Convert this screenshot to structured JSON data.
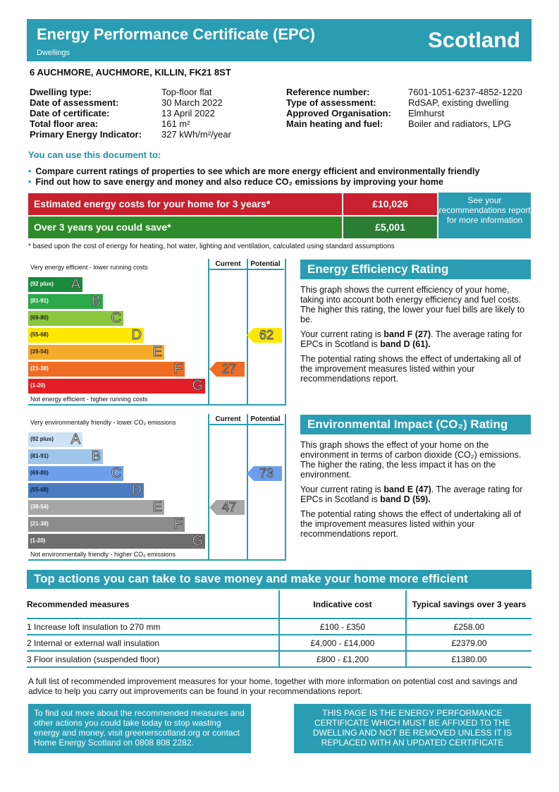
{
  "header": {
    "title": "Energy Performance Certificate (EPC)",
    "subtitle": "Dwellings",
    "country": "Scotland"
  },
  "address": "6 AUCHMORE, AUCHMORE, KILLIN, FK21 8ST",
  "details_left": [
    {
      "label": "Dwelling type:",
      "value": "Top-floor flat"
    },
    {
      "label": "Date of assessment:",
      "value": "30 March 2022"
    },
    {
      "label": "Date of certificate:",
      "value": "13 April 2022"
    },
    {
      "label": "Total floor area:",
      "value": "161 m²"
    },
    {
      "label": "Primary Energy Indicator:",
      "value": "327 kWh/m²/year"
    }
  ],
  "details_right": [
    {
      "label": "Reference number:",
      "value": "7601-1051-6237-4852-1220"
    },
    {
      "label": "Type of assessment:",
      "value": "RdSAP, existing dwelling"
    },
    {
      "label": "Approved Organisation:",
      "value": "Elmhurst"
    },
    {
      "label": "Main heating and fuel:",
      "value": "Boiler and radiators, LPG"
    }
  ],
  "use_heading": "You can use this document to:",
  "bullets": [
    "Compare current ratings of properties to see which are more energy efficient and environmentally friendly",
    "Find out how to save energy and money and also reduce CO₂ emissions by improving your home"
  ],
  "costs": {
    "estimated_label": "Estimated energy costs for your home for 3 years*",
    "estimated_value": "£10,026",
    "save_label": "Over 3 years you could save*",
    "save_value": "£5,001",
    "see_more": "See your recommendations report for more information",
    "footnote": "* based upon the cost of energy for heating, hot water, lighting and ventilation, calculated using standard assumptions"
  },
  "energy_chart": {
    "top": "Very energy efficient - lower running costs",
    "bottom": "Not energy efficient - higher running costs",
    "col_current": "Current",
    "col_potential": "Potential",
    "bands": [
      {
        "range": "(92 plus)",
        "letter": "A",
        "color": "#1a8a3c"
      },
      {
        "range": "(81-91)",
        "letter": "B",
        "color": "#2aa84a"
      },
      {
        "range": "(69-80)",
        "letter": "C",
        "color": "#8cc63e"
      },
      {
        "range": "(55-68)",
        "letter": "D",
        "color": "#ffe800"
      },
      {
        "range": "(39-54)",
        "letter": "E",
        "color": "#f5ab2a"
      },
      {
        "range": "(21-38)",
        "letter": "F",
        "color": "#ef6c23"
      },
      {
        "range": "(1-20)",
        "letter": "G",
        "color": "#e31d25"
      }
    ],
    "current": 27,
    "potential": 62
  },
  "env_chart": {
    "top": "Very environmentally friendly - lower CO₂ emissions",
    "bottom": "Not environmentally friendly - higher CO₂ emissions",
    "col_current": "Current",
    "col_potential": "Potential",
    "bands": [
      {
        "range": "(92 plus)",
        "letter": "A",
        "color": "#cfe2f3"
      },
      {
        "range": "(81-91)",
        "letter": "B",
        "color": "#9fc5ea"
      },
      {
        "range": "(69-80)",
        "letter": "C",
        "color": "#6d9eeb"
      },
      {
        "range": "(55-68)",
        "letter": "D",
        "color": "#4a7cc0"
      },
      {
        "range": "(39-54)",
        "letter": "E",
        "color": "#a6a6a6"
      },
      {
        "range": "(21-38)",
        "letter": "F",
        "color": "#8c8c8c"
      },
      {
        "range": "(1-20)",
        "letter": "G",
        "color": "#6e6e6e"
      }
    ],
    "current": 47,
    "potential": 73
  },
  "eer": {
    "title": "Energy Efficiency Rating",
    "p1": "This graph shows the current efficiency of your home, taking into account both energy efficiency and fuel costs. The higher this rating, the lower your fuel bills are likely to be.",
    "p2a": "Your current rating is ",
    "p2b": "band F (27)",
    "p2c": ". The average rating for EPCs in Scotland is ",
    "p2d": "band D (61).",
    "p3": "The potential rating shows the effect of undertaking all of the improvement measures listed within your recommendations report."
  },
  "eir": {
    "title": "Environmental Impact (CO₂) Rating",
    "p1": "This graph shows the effect of your home on the environment in terms of carbon dioxide (CO₂) emissions. The higher the rating, the less impact it has on the environment.",
    "p2a": "Your current rating is ",
    "p2b": "band E (47)",
    "p2c": ". The average rating for EPCs in Scotland is ",
    "p2d": "band D (59).",
    "p3": "The potential rating shows the effect of undertaking all of the improvement measures listed within your recommendations report."
  },
  "actions": {
    "title": "Top actions you can take to save money and make your home more efficient",
    "headers": [
      "Recommended measures",
      "Indicative cost",
      "Typical savings over 3 years"
    ],
    "rows": [
      [
        "1 Increase loft insulation to 270 mm",
        "£100 - £350",
        "£258.00"
      ],
      [
        "2 Internal or external wall insulation",
        "£4,000 - £14,000",
        "£2379.00"
      ],
      [
        "3 Floor insulation (suspended floor)",
        "£800 - £1,200",
        "£1380.00"
      ]
    ],
    "full_list": "A full list of recommended improvement measures for your home, together with more information on potential cost and savings and advice to help you carry out improvements can be found in your recommendations report."
  },
  "more_info": "To find out more about the recommended measures and other actions you could take today to stop wasting energy and money, visit greenerscotland.org or contact Home Energy Scotland on 0808 808 2282.",
  "affix_notice": "THIS PAGE IS THE ENERGY PERFORMANCE CERTIFICATE WHICH MUST BE AFFIXED TO THE DWELLING AND NOT BE REMOVED UNLESS IT IS REPLACED WITH AN UPDATED CERTIFICATE"
}
